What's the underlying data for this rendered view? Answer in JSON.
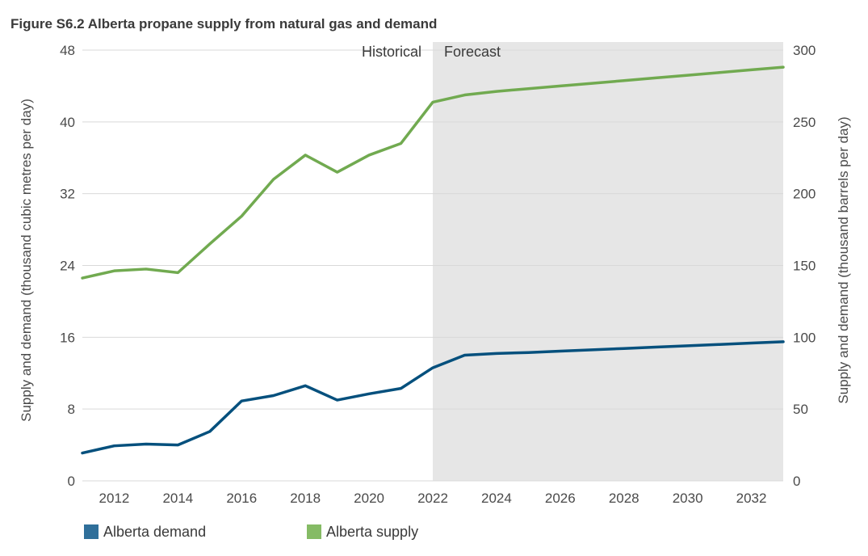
{
  "chart_data": {
    "type": "line",
    "title": "Figure S6.2  Alberta propane supply from natural gas and demand",
    "ylabel_left": "Supply and demand (thousand cubic metres per day)",
    "ylabel_right": "Supply and demand (thousand barrels per day)",
    "ylim_left": [
      0,
      48
    ],
    "ylim_right": [
      0,
      300
    ],
    "yticks_left": [
      "0",
      "8",
      "16",
      "24",
      "32",
      "40",
      "48"
    ],
    "yticks_right": [
      "0",
      "50",
      "100",
      "150",
      "200",
      "250",
      "300"
    ],
    "xlim": [
      2011,
      2033
    ],
    "xticks": [
      2012,
      2014,
      2016,
      2018,
      2020,
      2022,
      2024,
      2026,
      2028,
      2030,
      2032
    ],
    "grid": true,
    "legend": "bottom-left",
    "regions": [
      {
        "label": "Historical",
        "from": 2011,
        "to": 2022,
        "shaded": false
      },
      {
        "label": "Forecast",
        "from": 2022,
        "to": 2033,
        "shaded": true,
        "color": "#e6e6e6"
      }
    ],
    "x": [
      2011,
      2012,
      2013,
      2014,
      2015,
      2016,
      2017,
      2018,
      2019,
      2020,
      2021,
      2022,
      2023,
      2024,
      2025,
      2026,
      2027,
      2028,
      2029,
      2030,
      2031,
      2032,
      2033
    ],
    "series": [
      {
        "name": "Alberta demand",
        "color": "#05507d",
        "legend_color": "#2f6f9a",
        "values": [
          3.1,
          3.9,
          4.1,
          4.0,
          5.5,
          8.9,
          9.5,
          10.6,
          9.0,
          9.7,
          10.3,
          12.6,
          14.0,
          14.2,
          14.3,
          14.45,
          14.6,
          14.75,
          14.9,
          15.05,
          15.2,
          15.35,
          15.5
        ]
      },
      {
        "name": "Alberta supply",
        "color": "#71aa50",
        "legend_color": "#85bb65",
        "values": [
          22.6,
          23.4,
          23.6,
          23.2,
          26.4,
          29.5,
          33.6,
          36.3,
          34.4,
          36.3,
          37.6,
          42.2,
          43.0,
          43.4,
          43.7,
          44.0,
          44.3,
          44.6,
          44.9,
          45.2,
          45.5,
          45.8,
          46.1
        ]
      }
    ]
  }
}
